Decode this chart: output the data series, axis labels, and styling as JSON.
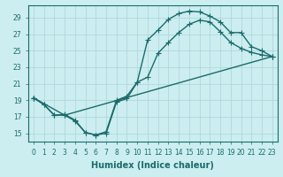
{
  "xlabel": "Humidex (Indice chaleur)",
  "bg_color": "#cceef0",
  "grid_color": "#aad4d8",
  "line_color": "#1a6b6b",
  "xlim": [
    -0.5,
    23.5
  ],
  "ylim": [
    14.0,
    30.5
  ],
  "yticks": [
    15,
    17,
    19,
    21,
    23,
    25,
    27,
    29
  ],
  "xticks": [
    0,
    1,
    2,
    3,
    4,
    5,
    6,
    7,
    8,
    9,
    10,
    11,
    12,
    13,
    14,
    15,
    16,
    17,
    18,
    19,
    20,
    21,
    22,
    23
  ],
  "curve1_x": [
    0,
    1,
    2,
    3,
    4,
    5,
    6,
    7,
    8,
    9,
    10,
    11,
    12,
    13,
    14,
    15,
    16,
    17,
    18,
    19,
    20,
    21,
    22,
    23
  ],
  "curve1_y": [
    19.3,
    18.5,
    17.2,
    17.2,
    16.5,
    15.1,
    14.8,
    15.0,
    18.8,
    19.2,
    21.2,
    26.3,
    27.5,
    28.8,
    29.5,
    29.8,
    29.7,
    29.2,
    28.5,
    27.2,
    27.2,
    25.5,
    25.0,
    24.3
  ],
  "curve2_x": [
    0,
    1,
    2,
    3,
    4,
    5,
    6,
    7,
    8,
    9,
    10,
    11,
    12,
    13,
    14,
    15,
    16,
    17,
    18,
    19,
    20,
    21,
    22,
    23
  ],
  "curve2_y": [
    19.3,
    18.5,
    17.2,
    17.3,
    16.6,
    15.1,
    14.8,
    15.2,
    19.0,
    19.5,
    21.2,
    21.8,
    24.7,
    26.0,
    27.2,
    28.2,
    28.7,
    28.5,
    27.3,
    26.0,
    25.3,
    24.8,
    24.5,
    24.3
  ],
  "curve3_x": [
    0,
    3,
    23
  ],
  "curve3_y": [
    19.3,
    17.2,
    24.3
  ],
  "marker": "+",
  "marker_size": 4,
  "linewidth": 1.0,
  "tick_fontsize": 5.5,
  "label_fontsize": 7.0
}
